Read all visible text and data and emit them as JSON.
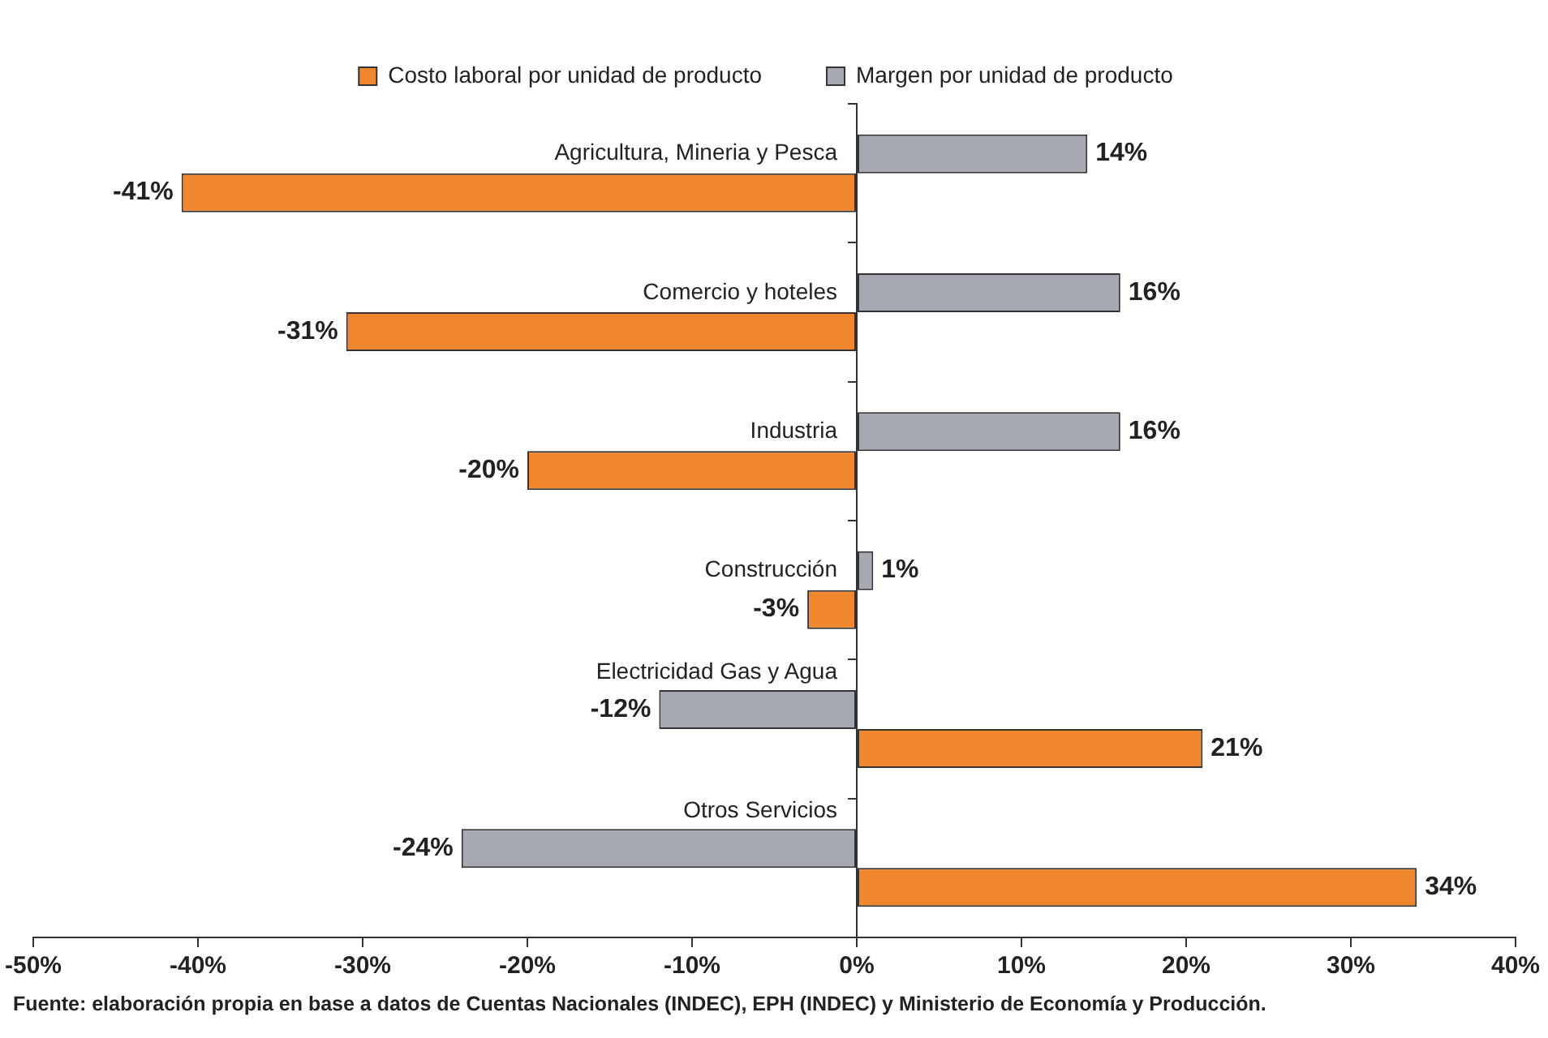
{
  "chart_data": {
    "type": "bar",
    "orientation": "horizontal",
    "categories": [
      "Agricultura, Mineria y Pesca",
      "Comercio y hoteles",
      "Industria",
      "Construcción",
      "Electricidad Gas y Agua",
      "Otros Servicios"
    ],
    "series": [
      {
        "name": "Costo laboral por unidad de producto",
        "color": "#f0862e",
        "values": [
          -41,
          -31,
          -20,
          -3,
          21,
          34
        ],
        "value_labels": [
          "-41%",
          "-31%",
          "-20%",
          "-3%",
          "21%",
          "34%"
        ]
      },
      {
        "name": "Margen por unidad de producto",
        "color": "#a6a9b1",
        "values": [
          14,
          16,
          16,
          1,
          -12,
          -24
        ],
        "value_labels": [
          "14%",
          "16%",
          "16%",
          "1%",
          "-12%",
          "-24%"
        ]
      }
    ],
    "xlim": [
      -50,
      40
    ],
    "xticks": [
      {
        "value": -50,
        "label": "-50%"
      },
      {
        "value": -40,
        "label": "-40%"
      },
      {
        "value": -30,
        "label": "-30%"
      },
      {
        "value": -20,
        "label": "-20%"
      },
      {
        "value": -10,
        "label": "-10%"
      },
      {
        "value": 0,
        "label": "0%"
      },
      {
        "value": 10,
        "label": "10%"
      },
      {
        "value": 20,
        "label": "20%"
      },
      {
        "value": 30,
        "label": "30%"
      },
      {
        "value": 40,
        "label": "40%"
      }
    ],
    "grid": false,
    "legend": "top",
    "annotations": [
      "Fuente: elaboración propia en base a datos de Cuentas Nacionales (INDEC), EPH (INDEC) y Ministerio de Economía y Producción."
    ]
  }
}
